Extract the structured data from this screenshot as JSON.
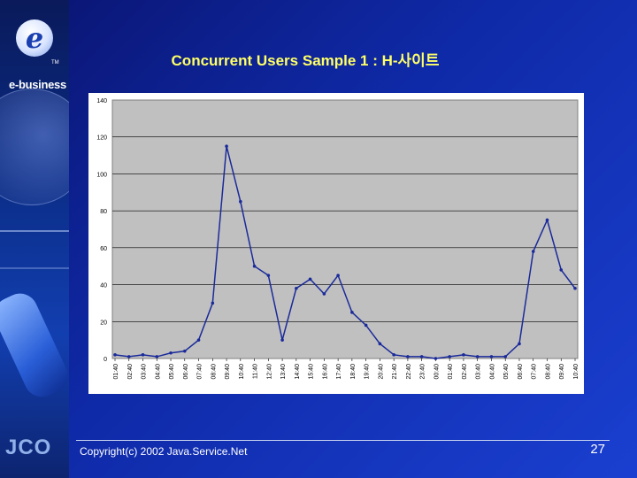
{
  "slide": {
    "title": "Concurrent Users Sample 1 : H-사이트",
    "footer": "Copyright(c) 2002 Java.Service.Net",
    "page_number": "27"
  },
  "branding": {
    "logo_letter": "e",
    "logo_tm": "TM",
    "logo_text": "e-business",
    "bottom_logo": "JCO"
  },
  "colors": {
    "background": "#1a3fd0",
    "title": "#ffff66",
    "plot_area": "#c0c0c0",
    "series": "#1a2a9a"
  },
  "chart_data": {
    "type": "line",
    "title": "",
    "xlabel": "",
    "ylabel": "",
    "ylim": [
      0,
      140
    ],
    "yticks": [
      0,
      20,
      40,
      60,
      80,
      100,
      120,
      140
    ],
    "grid": true,
    "legend": "none",
    "x": [
      "01:40",
      "02:40",
      "03:40",
      "04:40",
      "05:40",
      "06:40",
      "07:40",
      "08:40",
      "09:40",
      "10:40",
      "11:40",
      "12:40",
      "13:40",
      "14:40",
      "15:40",
      "16:40",
      "17:40",
      "18:40",
      "19:40",
      "20:40",
      "21:40",
      "22:40",
      "23:40",
      "00:40",
      "01:40",
      "02:40",
      "03:40",
      "04:40",
      "05:40",
      "06:40",
      "07:40",
      "08:40",
      "09:40",
      "10:40"
    ],
    "series": [
      {
        "values": [
          2,
          1,
          2,
          1,
          3,
          4,
          10,
          30,
          115,
          85,
          50,
          45,
          10,
          38,
          43,
          35,
          45,
          25,
          18,
          8,
          2,
          1,
          1,
          0,
          1,
          2,
          1,
          1,
          1,
          8,
          58,
          75,
          48,
          38
        ]
      }
    ]
  }
}
